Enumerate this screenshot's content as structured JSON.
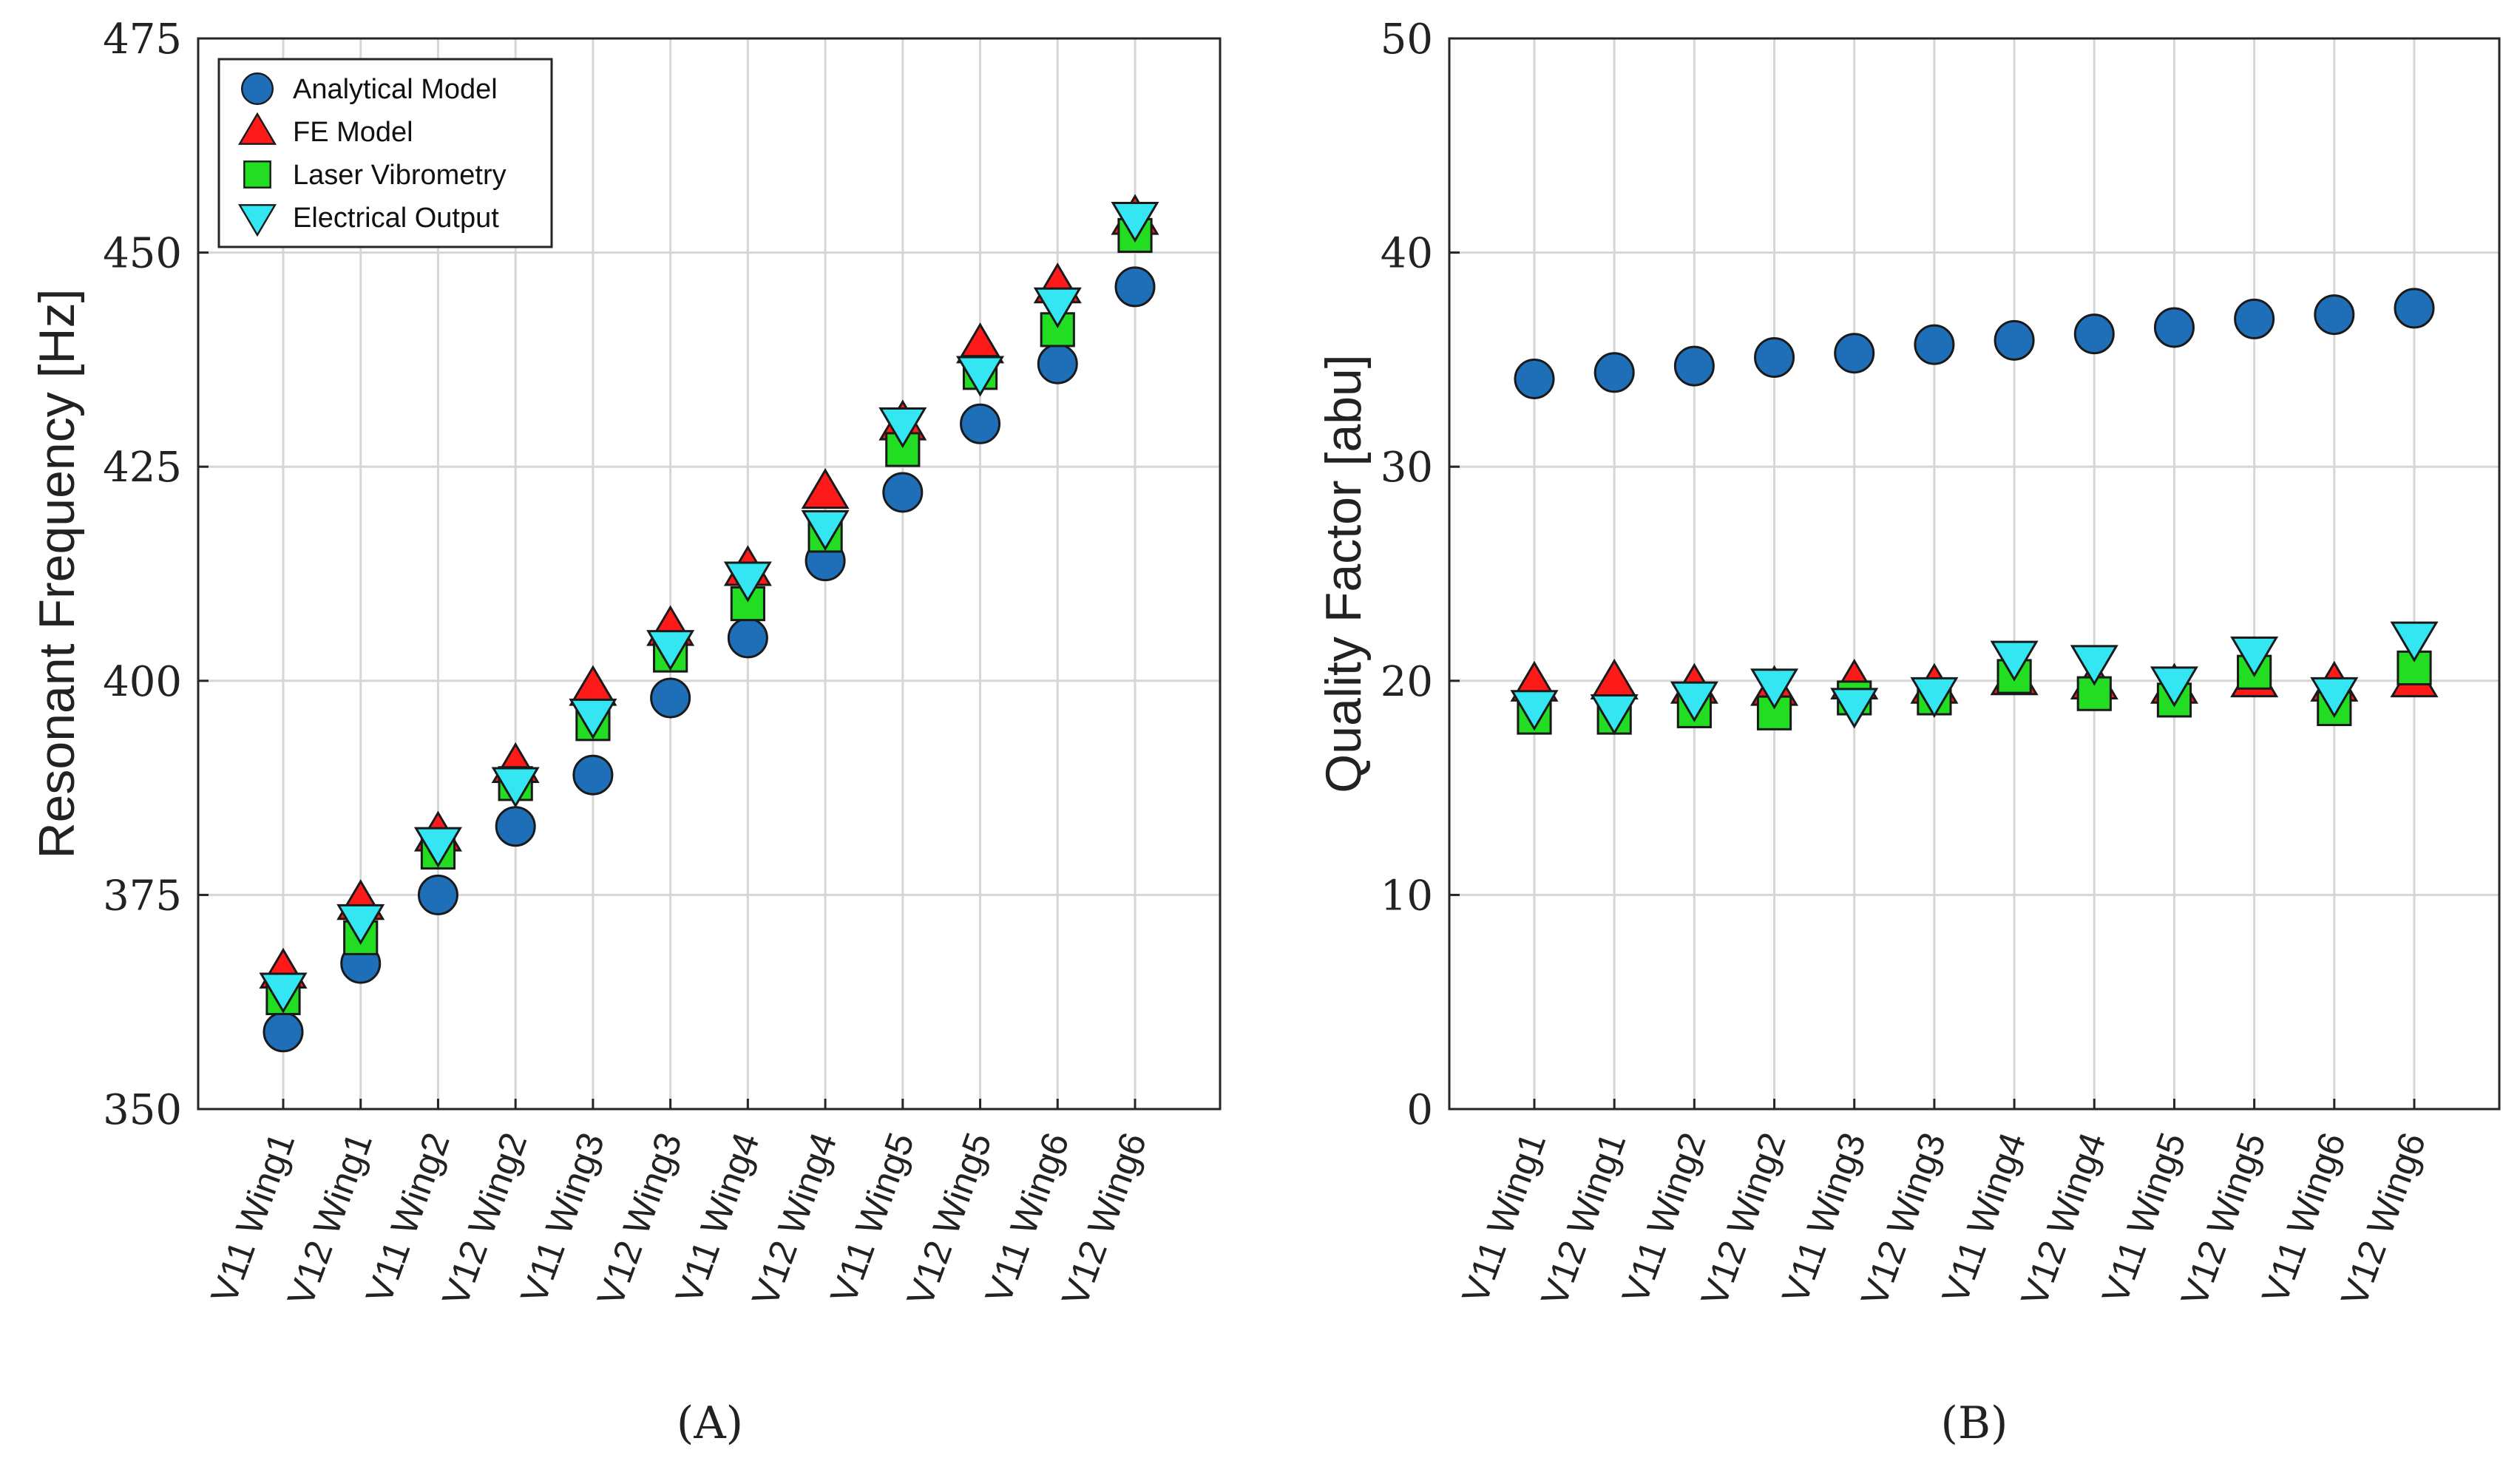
{
  "colors": {
    "analytical": "#1f6fb8",
    "fe": "#ff1a1a",
    "laser": "#22dd22",
    "electrical": "#33e6f2"
  },
  "legend": {
    "items": [
      {
        "key": "analytical",
        "label": "Analytical Model",
        "marker": "circle"
      },
      {
        "key": "fe",
        "label": "FE Model",
        "marker": "triangle-up"
      },
      {
        "key": "laser",
        "label": "Laser Vibrometry",
        "marker": "square"
      },
      {
        "key": "electrical",
        "label": "Electrical Output",
        "marker": "triangle-down"
      }
    ]
  },
  "chart_data": [
    {
      "type": "scatter",
      "caption": "(A)",
      "ylabel": "Resonant Frequency [Hz]",
      "xlabel": "",
      "ylim": [
        350,
        475
      ],
      "yticks": [
        350,
        375,
        400,
        425,
        450,
        475
      ],
      "grid": true,
      "legend_position": "top-left",
      "categories": [
        "V11 Wing1",
        "V12 Wing1",
        "V11 Wing2",
        "V12 Wing2",
        "V11 Wing3",
        "V12 Wing3",
        "V11 Wing4",
        "V12 Wing4",
        "V11 Wing5",
        "V12 Wing5",
        "V11 Wing6",
        "V12 Wing6"
      ],
      "series": [
        {
          "key": "analytical",
          "name": "Analytical Model",
          "values": [
            359,
            367,
            375,
            383,
            389,
            398,
            405,
            414,
            422,
            430,
            437,
            446
          ]
        },
        {
          "key": "fe",
          "name": "FE Model",
          "values": [
            366,
            374,
            382,
            390,
            399,
            406,
            413,
            422,
            430,
            439,
            446,
            454
          ]
        },
        {
          "key": "laser",
          "name": "Laser Vibrometry",
          "values": [
            363,
            370,
            380,
            388,
            395,
            403,
            409,
            417,
            427,
            436,
            441,
            452
          ]
        },
        {
          "key": "electrical",
          "name": "Electrical Output",
          "values": [
            364,
            372,
            381,
            388,
            396,
            404,
            412,
            418,
            430,
            436,
            444,
            454
          ]
        }
      ]
    },
    {
      "type": "scatter",
      "caption": "(B)",
      "ylabel": "Quality Factor [abu]",
      "xlabel": "",
      "ylim": [
        0,
        50
      ],
      "yticks": [
        0,
        10,
        20,
        30,
        40,
        50
      ],
      "grid": true,
      "categories": [
        "V11 Wing1",
        "V12 Wing1",
        "V11 Wing2",
        "V12 Wing2",
        "V11 Wing3",
        "V12 Wing3",
        "V11 Wing4",
        "V12 Wing4",
        "V11 Wing5",
        "V12 Wing5",
        "V11 Wing6",
        "V12 Wing6"
      ],
      "series": [
        {
          "key": "analytical",
          "name": "Analytical Model",
          "values": [
            34.1,
            34.4,
            34.7,
            35.1,
            35.3,
            35.7,
            35.9,
            36.2,
            36.5,
            36.9,
            37.1,
            37.4
          ]
        },
        {
          "key": "fe",
          "name": "FE Model",
          "values": [
            19.8,
            19.9,
            19.7,
            19.6,
            19.9,
            19.7,
            20.1,
            19.9,
            19.7,
            20.0,
            19.8,
            20.0
          ]
        },
        {
          "key": "laser",
          "name": "Laser Vibrometry",
          "values": [
            18.3,
            18.3,
            18.6,
            18.5,
            19.2,
            19.2,
            20.2,
            19.4,
            19.1,
            20.4,
            18.7,
            20.6
          ]
        },
        {
          "key": "electrical",
          "name": "Electrical Output",
          "values": [
            18.8,
            18.6,
            19.2,
            19.8,
            18.9,
            19.4,
            21.1,
            20.9,
            19.9,
            21.3,
            19.4,
            22.0
          ]
        }
      ]
    }
  ]
}
